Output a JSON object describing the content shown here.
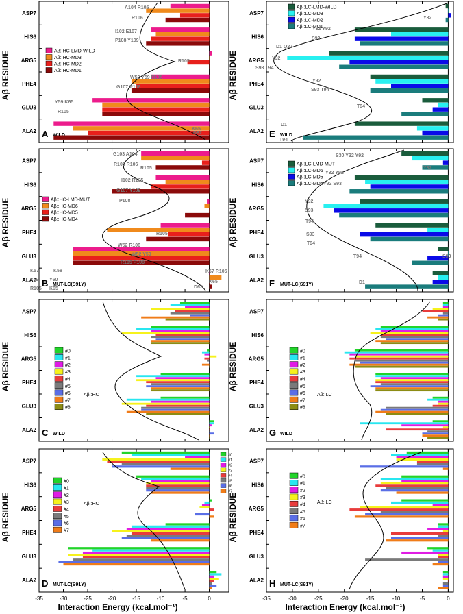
{
  "figure": {
    "y_axis_label_left": "Aβ RESIDUE",
    "y_axis_label_right": "Aβ RESIDUE",
    "x_axis_label_left": "Interaction Energy (kcal.mol⁻¹)",
    "x_axis_label_right": "Interaction Energy (kcal.mol⁻¹)",
    "x_ticks": [
      "-35",
      "-30",
      "-25",
      "-20",
      "-15",
      "-10",
      "-5",
      "0"
    ]
  },
  "chart_data": [
    {
      "id": "A",
      "type": "bar",
      "orientation": "horizontal",
      "condition": "WILD",
      "xlim": [
        -35,
        4
      ],
      "categories": [
        "ASP7",
        "HIS6",
        "ARG5",
        "PHE4",
        "GLU3",
        "ALA2"
      ],
      "colors": [
        "#ec1c8c",
        "#f08a1c",
        "#e8201c",
        "#8b0a0a"
      ],
      "series": [
        {
          "name": "Aβ::HC-LMD-WILD",
          "values": [
            -8,
            -12,
            0.5,
            -12,
            -24,
            -32
          ]
        },
        {
          "name": "Aβ::HC-MD3",
          "values": [
            -13,
            -11,
            0,
            -16,
            -22,
            -28
          ]
        },
        {
          "name": "Aβ::HC-MD2",
          "values": [
            -6,
            -12,
            -4.5,
            -15,
            -22,
            -25
          ]
        },
        {
          "name": "Aβ::HC-MD1",
          "values": [
            -9,
            -13,
            0,
            -16,
            -22,
            -32
          ]
        }
      ],
      "annotations": [
        "A104 R105",
        "R106",
        "I102 E107",
        "P108 Y109",
        "R105",
        "W52 Y59 R105",
        "G107 P108",
        "Y59 K65",
        "R105",
        "K65",
        "D62"
      ]
    },
    {
      "id": "B",
      "type": "bar",
      "orientation": "horizontal",
      "condition": "MUT-LC(S91Y)",
      "xlim": [
        -35,
        4
      ],
      "categories": [
        "ASP7",
        "HIS6",
        "ARG5",
        "PHE4",
        "GLU3",
        "ALA2"
      ],
      "colors": [
        "#ec1c8c",
        "#f08a1c",
        "#e8201c",
        "#8b0a0a"
      ],
      "series": [
        {
          "name": "Aβ::HC-LMD-MUT",
          "values": [
            -14,
            -11,
            -0.5,
            -10,
            -28,
            0
          ]
        },
        {
          "name": "Aβ::HC-MD6",
          "values": [
            -14,
            -9,
            -1,
            -21,
            -28,
            2.5
          ]
        },
        {
          "name": "Aβ::HC-MD5",
          "values": [
            -1.5,
            -12,
            0,
            -8.5,
            -28,
            0
          ]
        },
        {
          "name": "Aβ::HC-MD4",
          "values": [
            -11,
            -20,
            -5,
            -13,
            -28,
            0.5
          ]
        }
      ],
      "annotations": [
        "G103 A104",
        "R105 R106",
        "R105",
        "I102 R105",
        "G107 Y109",
        "P108",
        "R105",
        "W52 R106",
        "W52 Y59",
        "R105 P108",
        "K57",
        "K58",
        "Y59",
        "Y60",
        "R105",
        "K65",
        "K57 R105",
        "K65",
        "D62"
      ]
    },
    {
      "id": "C",
      "type": "bar",
      "orientation": "horizontal",
      "condition": "WILD",
      "complex": "Aβ::HC",
      "xlim": [
        -35,
        4
      ],
      "categories": [
        "ASP7",
        "HIS6",
        "ARG5",
        "PHE4",
        "GLU3",
        "ALA2"
      ],
      "colors": [
        "#22d42a",
        "#28e6f0",
        "#e01ce4",
        "#f6f21c",
        "#e83c3c",
        "#7a7a7a",
        "#5a6ee6",
        "#f07c18",
        "#8c8c14"
      ],
      "series": [
        {
          "name": "#0",
          "values": [
            -6,
            -12,
            -0.5,
            -10,
            -10,
            1
          ]
        },
        {
          "name": "#1",
          "values": [
            -8,
            -15,
            -1.5,
            -15,
            -17,
            1
          ]
        },
        {
          "name": "#2",
          "values": [
            -5,
            -12,
            -1,
            -11,
            -12,
            0.5
          ]
        },
        {
          "name": "#3",
          "values": [
            -12,
            -18,
            1.5,
            -15,
            -18,
            0
          ]
        },
        {
          "name": "#4",
          "values": [
            -7,
            -11,
            -1,
            -13,
            -13,
            0
          ]
        },
        {
          "name": "#5",
          "values": [
            -8,
            -12,
            -0.5,
            -12,
            -14,
            0
          ]
        },
        {
          "name": "#6",
          "values": [
            -4,
            -11,
            0,
            -13,
            -14,
            1
          ]
        },
        {
          "name": "#7",
          "values": [
            -14,
            -12,
            -1.5,
            -12,
            -17,
            0
          ]
        },
        {
          "name": "#8",
          "values": [
            -9,
            -12,
            0,
            -12,
            -13,
            0
          ]
        }
      ]
    },
    {
      "id": "D",
      "type": "bar",
      "orientation": "horizontal",
      "condition": "MUT-LC(S91Y)",
      "complex": "Aβ::HC",
      "xlim": [
        -35,
        4
      ],
      "categories": [
        "ASP7",
        "HIS6",
        "ARG5",
        "PHE4",
        "GLU3",
        "ALA2"
      ],
      "colors": [
        "#22d42a",
        "#28e6f0",
        "#e01ce4",
        "#f6f21c",
        "#e83c3c",
        "#7a7a7a",
        "#5a6ee6",
        "#f07c18"
      ],
      "series": [
        {
          "name": "#0",
          "values": [
            -18,
            -15,
            0.5,
            -9,
            -29,
            1.5
          ]
        },
        {
          "name": "#1",
          "values": [
            -16,
            -14,
            -1,
            -16,
            -24,
            2.5
          ]
        },
        {
          "name": "#2",
          "values": [
            -5,
            -12,
            -1.5,
            -17,
            -26,
            1
          ]
        },
        {
          "name": "#3",
          "values": [
            -22,
            -13,
            -2,
            -20,
            -29,
            2
          ]
        },
        {
          "name": "#4",
          "values": [
            -21,
            -13,
            1,
            -16,
            -26,
            1
          ]
        },
        {
          "name": "#5",
          "values": [
            -18,
            -13,
            0,
            -17,
            -28,
            0.5
          ]
        },
        {
          "name": "#6",
          "values": [
            -20,
            -13,
            -3,
            -18,
            -31,
            1.5
          ]
        },
        {
          "name": "#7",
          "values": [
            -8,
            -12,
            1,
            -12,
            -30,
            0.5
          ]
        }
      ]
    },
    {
      "id": "E",
      "type": "bar",
      "orientation": "horizontal",
      "condition": "WILD",
      "xlim": [
        -35,
        1
      ],
      "categories": [
        "ASP7",
        "HIS6",
        "ARG5",
        "PHE4",
        "GLU3",
        "ALA2"
      ],
      "colors": [
        "#1a5c3c",
        "#28f0f0",
        "#0a0ae8",
        "#1a7c7c"
      ],
      "series": [
        {
          "name": "Aβ::LC-LMD-WILD",
          "values": [
            -0.5,
            -18,
            -23,
            -15,
            -5,
            -18
          ]
        },
        {
          "name": "Aβ::LC-MD3",
          "values": [
            0,
            -11,
            -31,
            -14,
            -2,
            -6
          ]
        },
        {
          "name": "Aβ::LC-MD2",
          "values": [
            0.5,
            -18,
            -19,
            -11,
            -3,
            -5
          ]
        },
        {
          "name": "Aβ::LC-MD1",
          "values": [
            -0.5,
            -17,
            -21,
            -15,
            -9,
            -28
          ]
        }
      ],
      "annotations": [
        "Y32",
        "Y32 Y92",
        "S93",
        "D1 Q27",
        "Y92",
        "S93 T94",
        "Y92",
        "S93 T94",
        "T94",
        "D1",
        "T94"
      ]
    },
    {
      "id": "F",
      "type": "bar",
      "orientation": "horizontal",
      "condition": "MUT-LC(S91Y)",
      "xlim": [
        -35,
        1
      ],
      "categories": [
        "ASP7",
        "HIS6",
        "ARG5",
        "PHE4",
        "GLU3",
        "ALA2"
      ],
      "colors": [
        "#1a5c3c",
        "#28f0f0",
        "#0a0ae8",
        "#1a7c7c"
      ],
      "series": [
        {
          "name": "Aβ::LC-LMD-MUT",
          "values": [
            -9,
            -18,
            -17,
            -14,
            -2,
            -3
          ]
        },
        {
          "name": "Aβ::LC-MD6",
          "values": [
            -7,
            -16,
            -24,
            -4,
            0,
            -2
          ]
        },
        {
          "name": "Aβ::LC-MD5",
          "values": [
            -1,
            -15,
            -22,
            -17,
            -4,
            -3
          ]
        },
        {
          "name": "Aβ::LC-MD4",
          "values": [
            -5,
            -19,
            -21,
            -15,
            -7,
            -16
          ]
        }
      ],
      "annotations": [
        "S30 Y32 Y92",
        "Y32",
        "Y32 Y92",
        "Y92 S93",
        "Y92",
        "S93",
        "T94",
        "S93",
        "T94",
        "T94",
        "S93",
        "D1"
      ]
    },
    {
      "id": "G",
      "type": "bar",
      "orientation": "horizontal",
      "condition": "WILD",
      "complex": "Aβ::LC",
      "xlim": [
        -35,
        1
      ],
      "categories": [
        "ASP7",
        "HIS6",
        "ARG5",
        "PHE4",
        "GLU3",
        "ALA2"
      ],
      "colors": [
        "#22d42a",
        "#28e6f0",
        "#e01ce4",
        "#f6f21c",
        "#e83c3c",
        "#7a7a7a",
        "#5a6ee6",
        "#f07c18",
        "#8c8c14"
      ],
      "series": [
        {
          "name": "#0",
          "values": [
            -1,
            -13,
            -18,
            -14,
            -3,
            -3
          ]
        },
        {
          "name": "#1",
          "values": [
            -1,
            -14,
            -20,
            -14,
            -4,
            -17
          ]
        },
        {
          "name": "#2",
          "values": [
            -1,
            -13,
            -19,
            -13,
            -2,
            -9
          ]
        },
        {
          "name": "#3",
          "values": [
            -3,
            -15,
            -18,
            -14,
            -2,
            -1
          ]
        },
        {
          "name": "#4",
          "values": [
            -5,
            -13,
            -19,
            -14,
            -3,
            -12
          ]
        },
        {
          "name": "#5",
          "values": [
            -1,
            -13,
            -18,
            -13,
            -12,
            -4
          ]
        },
        {
          "name": "#6",
          "values": [
            -2,
            -12,
            -17,
            -15,
            -13,
            -5
          ]
        },
        {
          "name": "#7",
          "values": [
            -4,
            -14,
            -19,
            -14,
            -14,
            -5
          ]
        },
        {
          "name": "#8",
          "values": [
            -2,
            -13,
            -18,
            -14,
            -12,
            -4
          ]
        }
      ]
    },
    {
      "id": "H",
      "type": "bar",
      "orientation": "horizontal",
      "condition": "MUT-LC(S91Y)",
      "complex": "Aβ::LC",
      "xlim": [
        -35,
        1
      ],
      "categories": [
        "ASP7",
        "HIS6",
        "ARG5",
        "PHE4",
        "GLU3",
        "ALA2"
      ],
      "colors": [
        "#22d42a",
        "#28e6f0",
        "#e01ce4",
        "#f6f21c",
        "#e83c3c",
        "#7a7a7a",
        "#5a6ee6",
        "#f07c18"
      ],
      "series": [
        {
          "name": "#0",
          "values": [
            -8,
            -9,
            -9,
            -2,
            -4,
            -1
          ]
        },
        {
          "name": "#1",
          "values": [
            -11,
            -13,
            -11,
            -2,
            -3,
            -1
          ]
        },
        {
          "name": "#2",
          "values": [
            -10,
            -9,
            -3,
            -4,
            -9,
            -1
          ]
        },
        {
          "name": "#3",
          "values": [
            -10,
            -13,
            -17,
            -1,
            -2,
            -1
          ]
        },
        {
          "name": "#4",
          "values": [
            -6,
            -14,
            -19,
            -11,
            -2,
            0
          ]
        },
        {
          "name": "#5",
          "values": [
            -6,
            -12,
            -13,
            -2,
            -16,
            -1
          ]
        },
        {
          "name": "#6",
          "values": [
            -17,
            -13,
            -16,
            -11,
            -2,
            -1
          ]
        },
        {
          "name": "#7",
          "values": [
            -1,
            -10,
            -18,
            -12,
            -3,
            -2
          ]
        }
      ]
    }
  ]
}
